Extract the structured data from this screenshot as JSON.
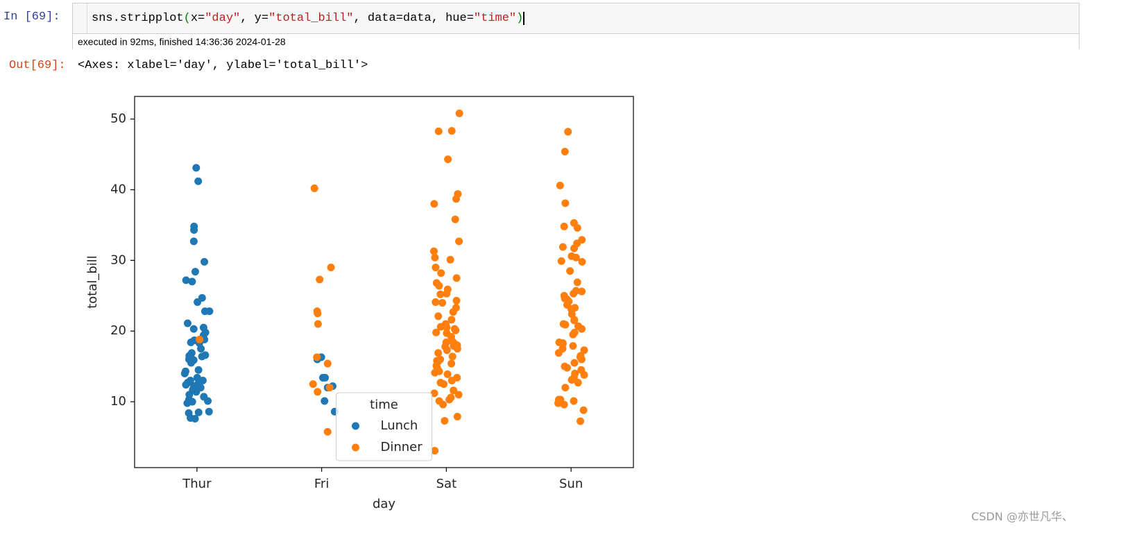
{
  "notebook": {
    "in_prompt": "In [69]:",
    "code_tokens": [
      "sns.stripplot",
      "(",
      "x=",
      "\"day\"",
      ", y=",
      "\"total_bill\"",
      ", data=data, hue=",
      "\"time\"",
      ")"
    ],
    "exec_info": "executed in 92ms, finished 14:36:36 2024-01-28",
    "out_prompt": "Out[69]:",
    "out_text": "<Axes: xlabel='day', ylabel='total_bill'>",
    "watermark": "CSDN @亦世凡华、"
  },
  "chart_data": {
    "type": "strip",
    "xlabel": "day",
    "ylabel": "total_bill",
    "categories": [
      "Thur",
      "Fri",
      "Sat",
      "Sun"
    ],
    "ylim": [
      0.68,
      53.2
    ],
    "yticks": [
      10,
      20,
      30,
      40,
      50
    ],
    "legend_title": "time",
    "legend_loc": "lower center",
    "series": [
      {
        "name": "Lunch",
        "color": "#1f77b4",
        "values": [
          [
            43.1,
            41.2,
            34.8,
            34.3,
            32.7,
            29.8,
            28.4,
            27.2,
            27.0,
            24.7,
            24.1,
            22.8,
            22.8,
            21.1,
            20.5,
            20.3,
            19.8,
            19.4,
            18.8,
            18.7,
            18.4,
            18.3,
            17.5,
            16.9,
            16.6,
            16.5,
            16.4,
            16.3,
            16.0,
            15.9,
            15.5,
            14.5,
            14.3,
            14.0,
            13.4,
            13.0,
            13.0,
            12.7,
            12.5,
            12.4,
            12.2,
            12.0,
            11.7,
            11.4,
            11.0,
            10.7,
            10.3,
            10.1,
            10.0,
            9.8,
            8.6,
            8.4,
            8.5,
            7.7,
            7.6
          ],
          [
            16.3,
            16.0,
            13.4,
            13.4,
            12.2,
            12.0,
            10.1,
            8.6
          ],
          [],
          []
        ]
      },
      {
        "name": "Dinner",
        "color": "#ff7f0e",
        "values": [
          [
            18.8
          ],
          [
            40.2,
            29.0,
            27.3,
            22.8,
            22.5,
            21.0,
            16.3,
            15.4,
            12.5,
            12.0,
            11.4,
            5.75
          ],
          [
            50.81,
            48.33,
            48.27,
            44.3,
            39.4,
            38.7,
            38.0,
            35.8,
            32.7,
            31.3,
            30.1,
            30.4,
            29.0,
            28.2,
            27.5,
            26.8,
            26.4,
            25.9,
            25.3,
            25.2,
            24.3,
            24.1,
            24.0,
            23.3,
            22.7,
            22.1,
            21.6,
            21.0,
            20.7,
            20.6,
            20.5,
            20.3,
            20.1,
            19.8,
            19.7,
            19.2,
            18.5,
            18.4,
            18.2,
            18.0,
            17.9,
            17.8,
            17.5,
            17.3,
            16.9,
            16.4,
            16.0,
            15.8,
            15.7,
            15.4,
            15.1,
            14.8,
            14.3,
            14.1,
            13.9,
            13.4,
            13.0,
            12.7,
            12.5,
            11.6,
            11.2,
            11.0,
            10.6,
            10.3,
            10.1,
            9.6,
            7.9,
            7.3,
            3.07
          ],
          [
            48.2,
            45.4,
            40.6,
            38.1,
            35.3,
            34.8,
            34.6,
            32.9,
            32.4,
            31.9,
            31.7,
            30.6,
            30.4,
            29.9,
            29.8,
            28.5,
            26.9,
            25.7,
            25.6,
            25.3,
            25.0,
            24.6,
            24.5,
            24.2,
            23.7,
            23.3,
            23.1,
            22.4,
            21.6,
            21.5,
            21.0,
            20.9,
            20.7,
            20.3,
            19.8,
            19.5,
            18.4,
            18.3,
            18.2,
            17.9,
            17.5,
            17.3,
            16.9,
            16.5,
            16.3,
            16.0,
            15.5,
            15.0,
            14.8,
            14.5,
            14.0,
            13.8,
            13.4,
            13.1,
            12.7,
            12.0,
            10.3,
            10.3,
            10.1,
            9.8,
            9.6,
            8.8,
            7.25
          ]
        ]
      }
    ]
  }
}
